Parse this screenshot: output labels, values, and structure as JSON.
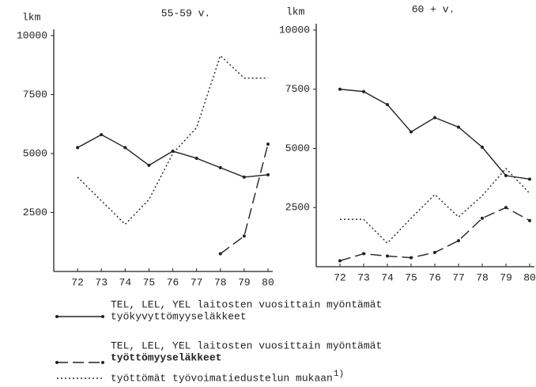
{
  "chart_data": [
    {
      "type": "line",
      "title": "55-59 v.",
      "ylabel": "lkm",
      "x": [
        72,
        73,
        74,
        75,
        76,
        77,
        78,
        79,
        80
      ],
      "xlim": [
        71,
        80.2
      ],
      "xticks": [
        72,
        73,
        74,
        75,
        76,
        77,
        78,
        79,
        80
      ],
      "ylim": [
        0,
        10000
      ],
      "yticks": [
        2500,
        5000,
        7500,
        10000
      ],
      "grid": false,
      "series": [
        {
          "style": "solid",
          "color": "#222222",
          "values": [
            5250,
            5800,
            5250,
            4500,
            5100,
            4800,
            4400,
            4000,
            4100
          ]
        },
        {
          "style": "dashed",
          "color": "#222222",
          "values": [
            null,
            null,
            null,
            null,
            null,
            null,
            750,
            1500,
            5400
          ]
        },
        {
          "style": "dotted",
          "color": "#222222",
          "values": [
            4000,
            3000,
            2000,
            3050,
            5000,
            6100,
            9150,
            8200,
            8200
          ]
        }
      ]
    },
    {
      "type": "line",
      "title": "60 + v.",
      "ylabel": "lkm",
      "x": [
        72,
        73,
        74,
        75,
        76,
        77,
        78,
        79,
        80
      ],
      "xlim": [
        71,
        80.2
      ],
      "xticks": [
        72,
        73,
        74,
        75,
        76,
        77,
        78,
        79,
        80
      ],
      "ylim": [
        0,
        10000
      ],
      "yticks": [
        2500,
        5000,
        7500,
        10000
      ],
      "grid": false,
      "series": [
        {
          "style": "solid",
          "color": "#222222",
          "values": [
            7500,
            7400,
            6850,
            5700,
            6300,
            5900,
            5050,
            3850,
            3700
          ]
        },
        {
          "style": "dashed",
          "color": "#222222",
          "values": [
            250,
            550,
            450,
            380,
            600,
            1100,
            2050,
            2500,
            1950
          ]
        },
        {
          "style": "dotted",
          "color": "#222222",
          "values": [
            2000,
            2000,
            1000,
            2050,
            3050,
            2100,
            3000,
            4150,
            3100
          ]
        }
      ]
    }
  ],
  "legend": [
    {
      "style": "solid",
      "lines": [
        "TEL, LEL, YEL laitosten vuosittain myöntämät",
        "työkyvyttömyyseläkkeet"
      ]
    },
    {
      "style": "dashed",
      "lines": [
        "TEL, LEL, YEL laitosten vuosittain myöntämät",
        "työttömyyseläkkeet"
      ]
    },
    {
      "style": "dotted",
      "lines": [
        "työttömät työvoimatiedustelun mukaan"
      ],
      "note": "1)"
    }
  ]
}
